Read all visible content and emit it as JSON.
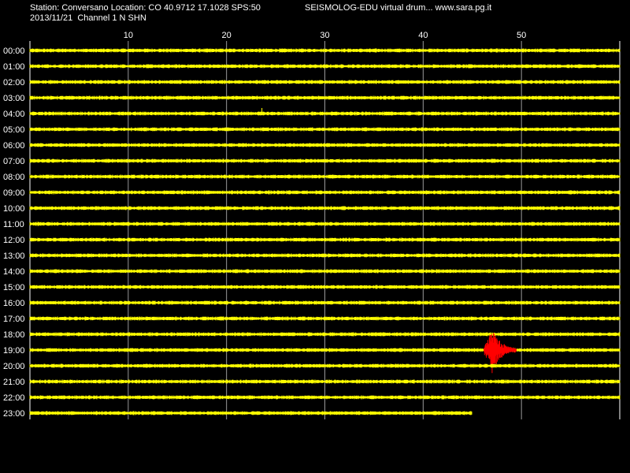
{
  "header": {
    "station_line": "Station: Conversano Location: CO 40.9712 17.1028 SPS:50",
    "date_line": "2013/11/21  Channel 1 N SHN",
    "brand_line": "SEISMOLOG-EDU virtual drum... www.sara.pg.it"
  },
  "colors": {
    "background": "#000000",
    "trace": "#ffff00",
    "event": "#ff0000",
    "grid": "#ffffff",
    "text": "#ffffff"
  },
  "chart_data": {
    "type": "line",
    "xlabel": "",
    "ylabel": "",
    "xlim": [
      0,
      60
    ],
    "x_ticks": [
      10,
      20,
      30,
      40,
      50
    ],
    "grid": "vertical lines at x ticks",
    "rows": [
      "00:00",
      "01:00",
      "02:00",
      "03:00",
      "04:00",
      "05:00",
      "06:00",
      "07:00",
      "08:00",
      "09:00",
      "10:00",
      "11:00",
      "12:00",
      "13:00",
      "14:00",
      "15:00",
      "16:00",
      "17:00",
      "18:00",
      "19:00",
      "20:00",
      "21:00",
      "22:00",
      "23:00"
    ],
    "row_end_minute": [
      60,
      60,
      60,
      60,
      60,
      60,
      60,
      60,
      60,
      60,
      60,
      60,
      60,
      60,
      60,
      60,
      60,
      60,
      60,
      60,
      60,
      60,
      60,
      45
    ],
    "events": [
      {
        "row": "19:00",
        "start_minute": 46.2,
        "peak_minute": 47.0,
        "end_minute": 49.5
      }
    ],
    "spikes": [
      {
        "row": "04:00",
        "minute": 23.6
      }
    ]
  }
}
